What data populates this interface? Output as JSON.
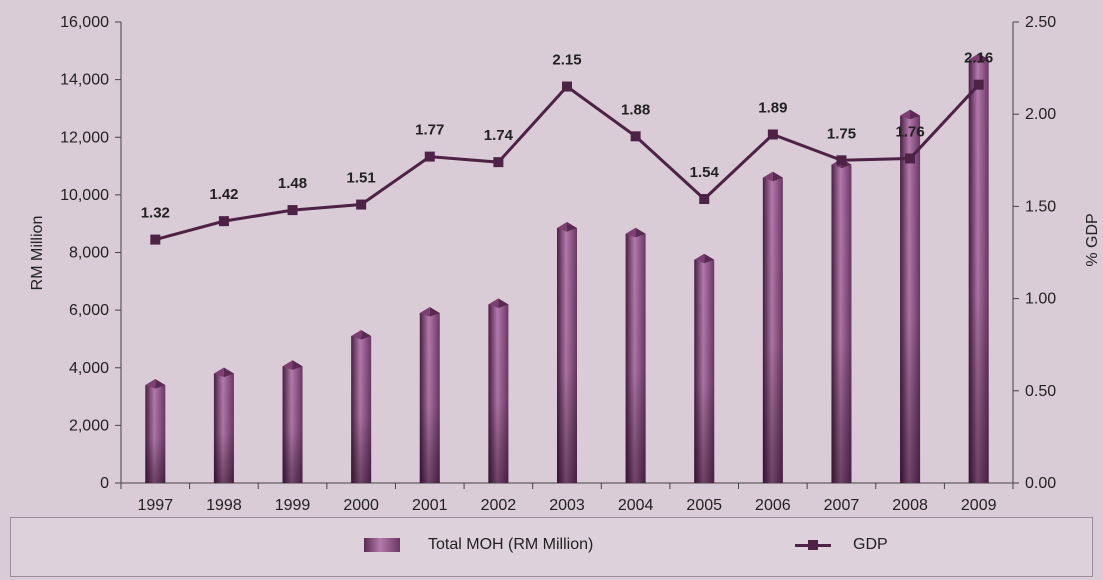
{
  "chart_data": {
    "type": "bar",
    "categories": [
      "1997",
      "1998",
      "1999",
      "2000",
      "2001",
      "2002",
      "2003",
      "2004",
      "2005",
      "2006",
      "2007",
      "2008",
      "2009"
    ],
    "series": [
      {
        "name": "Total MOH (RM Million)",
        "type": "bar",
        "axis": "left",
        "values": [
          3400,
          3800,
          4050,
          5100,
          5900,
          6200,
          8850,
          8650,
          7750,
          10600,
          11050,
          12750,
          14700
        ]
      },
      {
        "name": "GDP",
        "type": "line",
        "axis": "right",
        "values": [
          1.32,
          1.42,
          1.48,
          1.51,
          1.77,
          1.74,
          2.15,
          1.88,
          1.54,
          1.89,
          1.75,
          1.76,
          2.16
        ],
        "data_labels": [
          "1.32",
          "1.42",
          "1.48",
          "1.51",
          "1.77",
          "1.74",
          "2.15",
          "1.88",
          "1.54",
          "1.89",
          "1.75",
          "1.76",
          "2.16"
        ]
      }
    ],
    "ylabel": "RM Million",
    "y2label": "% GDP",
    "ylim": [
      0,
      16000
    ],
    "y2lim": [
      0,
      2.5
    ],
    "yticks": [
      "0",
      "2,000",
      "4,000",
      "6,000",
      "8,000",
      "10,000",
      "12,000",
      "14,000",
      "16,000"
    ],
    "y2ticks": [
      "0.00",
      "0.50",
      "1.00",
      "1.50",
      "2.00",
      "2.50"
    ],
    "grid": false,
    "legend_position": "bottom",
    "colors": {
      "bar_dark": "#4a1e44",
      "bar_light": "#b37aab",
      "line": "#4e2146",
      "background": "#d9ccd6"
    }
  },
  "legend": {
    "bar_label": "Total MOH (RM Million)",
    "line_label": "GDP"
  }
}
